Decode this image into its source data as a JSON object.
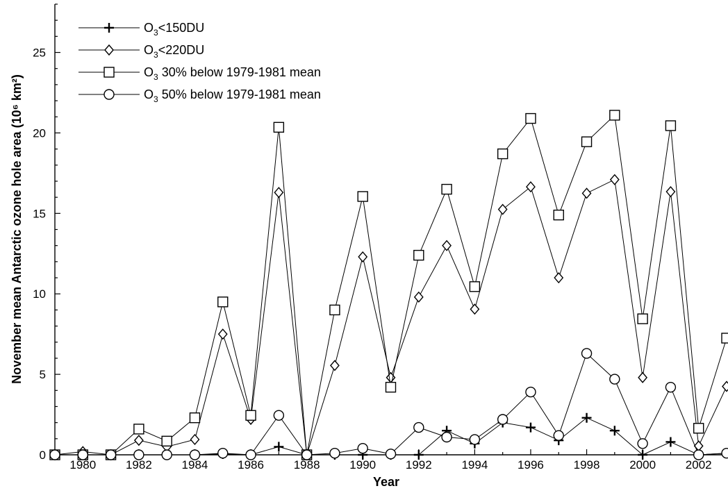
{
  "chart_data": {
    "type": "line",
    "xlabel": "Year",
    "ylabel": "November mean Antarctic ozone hole area (10⁶ km²)",
    "xlim": [
      1979,
      2003
    ],
    "ylim": [
      0,
      28
    ],
    "x_ticks": [
      1980,
      1982,
      1984,
      1986,
      1988,
      1990,
      1992,
      1994,
      1996,
      1998,
      2000,
      2002
    ],
    "x_tick_labels": [
      "1980",
      "1982",
      "1984",
      "1986",
      "1988",
      "1990",
      "1992",
      "1994",
      "1996",
      "1998",
      "2000",
      "2002"
    ],
    "y_ticks": [
      0,
      5,
      10,
      15,
      20,
      25
    ],
    "y_tick_labels": [
      "0",
      "5",
      "10",
      "15",
      "20",
      "25"
    ],
    "legend_position": "top-left",
    "grid": false,
    "x": [
      1979,
      1980,
      1981,
      1982,
      1983,
      1984,
      1985,
      1986,
      1987,
      1988,
      1989,
      1990,
      1991,
      1992,
      1993,
      1994,
      1995,
      1996,
      1997,
      1998,
      1999,
      2000,
      2001,
      2002,
      2003
    ],
    "series": [
      {
        "name": "O3<150DU",
        "legend_main": "O",
        "legend_sub": "3",
        "legend_rest": "<150DU",
        "marker": "plus",
        "values": [
          0,
          0,
          0,
          0,
          0,
          0,
          0.05,
          0,
          0.5,
          0,
          0,
          0,
          0,
          0,
          1.5,
          0.7,
          2.0,
          1.7,
          0.9,
          2.3,
          1.5,
          0,
          0.8,
          0,
          0.1
        ]
      },
      {
        "name": "O3<220DU",
        "legend_main": "O",
        "legend_sub": "3",
        "legend_rest": "<220DU",
        "marker": "diamond",
        "values": [
          0,
          0.2,
          0,
          0.9,
          0.5,
          0.95,
          7.5,
          2.2,
          16.3,
          0,
          5.55,
          12.3,
          4.8,
          9.8,
          13.0,
          9.05,
          15.25,
          16.65,
          11.0,
          16.25,
          17.1,
          4.8,
          16.35,
          0.55,
          4.25
        ]
      },
      {
        "name": "O3 30% below 1979-1981 mean",
        "legend_main": "O",
        "legend_sub": "3",
        "legend_rest": " 30% below 1979-1981 mean",
        "marker": "square",
        "values": [
          0,
          0,
          0,
          1.6,
          0.85,
          2.3,
          9.5,
          2.45,
          20.35,
          0,
          9.0,
          16.05,
          4.2,
          12.4,
          16.5,
          10.45,
          18.7,
          20.9,
          14.9,
          19.45,
          21.1,
          8.45,
          20.45,
          1.65,
          7.25
        ]
      },
      {
        "name": "O3 50% below 1979-1981 mean",
        "legend_main": "O",
        "legend_sub": "3",
        "legend_rest": " 50% below 1979-1981 mean",
        "marker": "circle",
        "values": [
          0,
          0,
          0,
          0,
          0,
          0,
          0.1,
          0,
          2.45,
          0,
          0.1,
          0.4,
          0.05,
          1.7,
          1.1,
          0.95,
          2.2,
          3.9,
          1.2,
          6.3,
          4.7,
          0.7,
          4.2,
          0,
          0.1
        ]
      }
    ]
  }
}
